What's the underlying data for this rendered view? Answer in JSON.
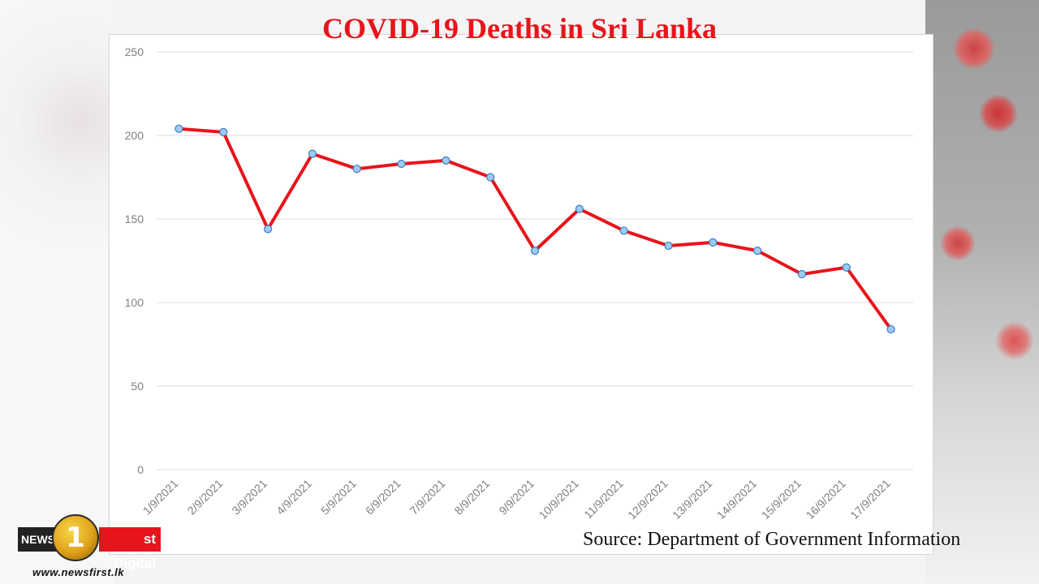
{
  "header": {
    "title": "COVID-19 Deaths in Sri Lanka"
  },
  "footer": {
    "source": "Source: Department of Government Information",
    "url": "www.newsfirst.lk"
  },
  "logo": {
    "left_text": "NEWS",
    "badge_text": "1",
    "right_text": "st Digital"
  },
  "colors": {
    "line": "#e8141b",
    "marker_fill": "#9ecbf2",
    "marker_stroke": "#3b7fc4",
    "grid": "#d9d9d9"
  },
  "chart_data": {
    "type": "line",
    "title": "COVID-19 Deaths in Sri Lanka",
    "xlabel": "",
    "ylabel": "",
    "ylim": [
      0,
      250
    ],
    "yticks": [
      0,
      50,
      100,
      150,
      200,
      250
    ],
    "grid": true,
    "categories": [
      "1/9/2021",
      "2/9/2021",
      "3/9/2021",
      "4/9/2021",
      "5/9/2021",
      "6/9/2021",
      "7/9/2021",
      "8/9/2021",
      "9/9/2021",
      "10/9/2021",
      "11/9/2021",
      "12/9/2021",
      "13/9/2021",
      "14/9/2021",
      "15/9/2021",
      "16/9/2021",
      "17/9/2021"
    ],
    "series": [
      {
        "values": [
          204,
          202,
          144,
          189,
          180,
          183,
          185,
          175,
          131,
          156,
          143,
          134,
          136,
          131,
          117,
          121,
          84
        ]
      }
    ]
  }
}
